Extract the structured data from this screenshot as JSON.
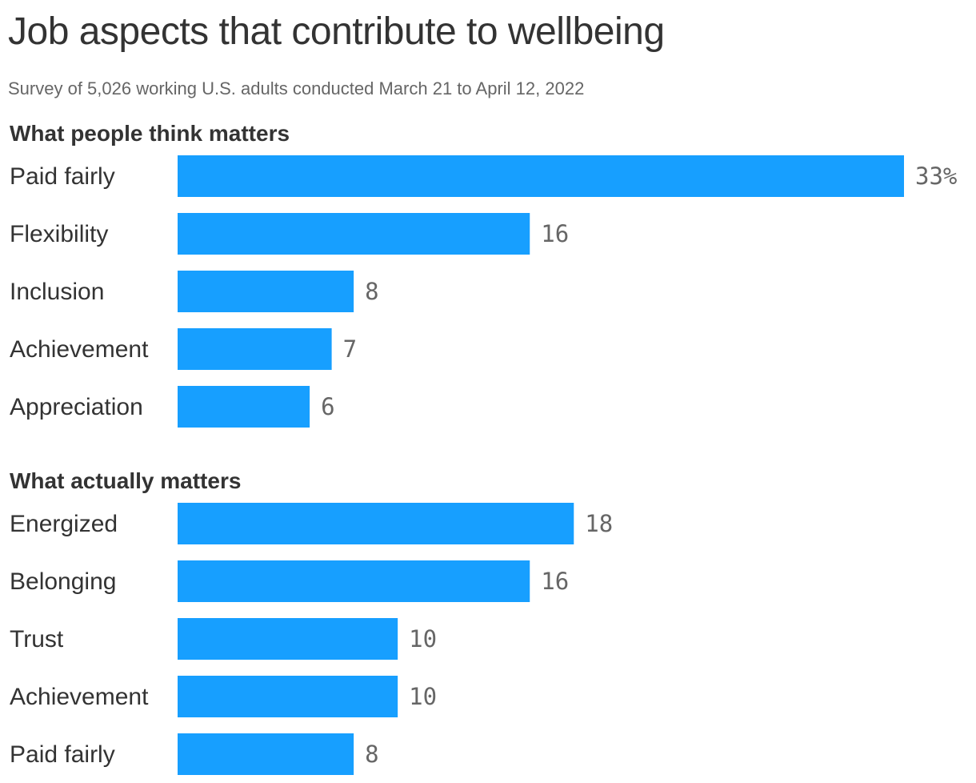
{
  "title": "Job aspects that contribute to wellbeing",
  "subtitle": "Survey of 5,026 working U.S. adults conducted March 21 to April 12, 2022",
  "bar_color": "#179fff",
  "chart_data": [
    {
      "type": "bar",
      "orientation": "horizontal",
      "title": "What people think matters",
      "categories": [
        "Paid fairly",
        "Flexibility",
        "Inclusion",
        "Achievement",
        "Appreciation"
      ],
      "values": [
        33,
        16,
        8,
        7,
        6
      ],
      "value_labels": [
        "33%",
        "16",
        "8",
        "7",
        "6"
      ],
      "unit": "%",
      "xlim": [
        0,
        33
      ],
      "grid": false,
      "legend": "none"
    },
    {
      "type": "bar",
      "orientation": "horizontal",
      "title": "What actually matters",
      "categories": [
        "Energized",
        "Belonging",
        "Trust",
        "Achievement",
        "Paid fairly"
      ],
      "values": [
        18,
        16,
        10,
        10,
        8
      ],
      "value_labels": [
        "18",
        "16",
        "10",
        "10",
        "8"
      ],
      "unit": "%",
      "xlim": [
        0,
        33
      ],
      "grid": false,
      "legend": "none"
    }
  ]
}
